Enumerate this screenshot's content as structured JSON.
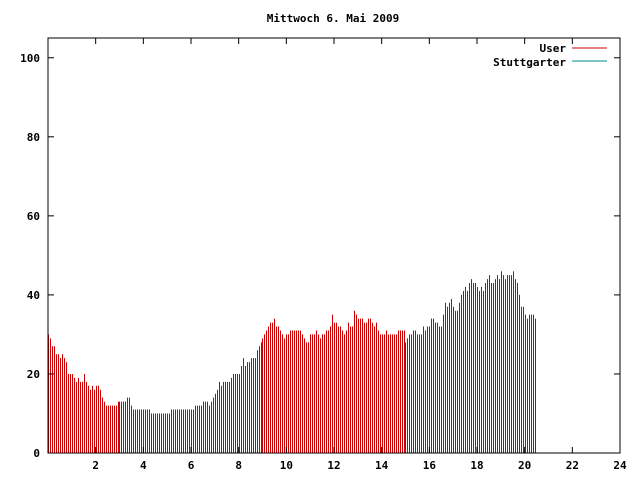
{
  "chart_data": {
    "type": "bar",
    "title": "Mittwoch 6. Mai 2009",
    "xlim": [
      0,
      24
    ],
    "ylim": [
      0,
      105
    ],
    "x_ticks": [
      2,
      4,
      6,
      8,
      10,
      12,
      14,
      16,
      18,
      20,
      22,
      24
    ],
    "y_ticks": [
      0,
      20,
      40,
      60,
      80,
      100
    ],
    "grid": false,
    "legend_placement": "top-right",
    "bar_step_hours": 0.0833333,
    "series": [
      {
        "name": "User",
        "color": "#cc0000",
        "start_hour": 0,
        "values": [
          30,
          29,
          27,
          27,
          25,
          25,
          24,
          25,
          24,
          23,
          20,
          20,
          20,
          19,
          18,
          19,
          18,
          18,
          20,
          18,
          17,
          16,
          17,
          16,
          17,
          17,
          16,
          14,
          13,
          12,
          12,
          12,
          12,
          12,
          12,
          13,
          13,
          13,
          13,
          13,
          14,
          14,
          12,
          11,
          11,
          11,
          11,
          11,
          11,
          11,
          11,
          11,
          10,
          10,
          10,
          10,
          10,
          10,
          10,
          10,
          10,
          10,
          11,
          11,
          11,
          11,
          11,
          11,
          11,
          11,
          11,
          11,
          11,
          11,
          12,
          12,
          12,
          12,
          13,
          13,
          13,
          12,
          13,
          14,
          15,
          16,
          18,
          17,
          18,
          18,
          18,
          18,
          19,
          20,
          20,
          20,
          20,
          22,
          24,
          22,
          23,
          23,
          24,
          24,
          24,
          26,
          27,
          28,
          29,
          30,
          31,
          32,
          33,
          33,
          34,
          32,
          32,
          31,
          30,
          29,
          30,
          30,
          31,
          31,
          31,
          31,
          31,
          31,
          30,
          29,
          28,
          28,
          30,
          30,
          30,
          31,
          30,
          29,
          30,
          30,
          31,
          31,
          32,
          35,
          33,
          33,
          32,
          32,
          31,
          30,
          31,
          33,
          32,
          32,
          36,
          35,
          34,
          34,
          34,
          33,
          33,
          34,
          34,
          33,
          32,
          33,
          31,
          30,
          30,
          30,
          31,
          30,
          30,
          30,
          30,
          30,
          31,
          31,
          31,
          31,
          28,
          29,
          30,
          30,
          31,
          31,
          30,
          30,
          30,
          32,
          31,
          32,
          32,
          34,
          34,
          33,
          33,
          32,
          32,
          35,
          38,
          37,
          38,
          39,
          37,
          36,
          36,
          38,
          40,
          41,
          42,
          41,
          43,
          44,
          43,
          43,
          42,
          41,
          42,
          41,
          43,
          44,
          45,
          43,
          43,
          44,
          45,
          44,
          46,
          45,
          44,
          45,
          45,
          45,
          46,
          44,
          43,
          40,
          37,
          37,
          35,
          34,
          35,
          35,
          35,
          34
        ]
      },
      {
        "name": "Stuttgarter",
        "color": "#008b8b",
        "values": []
      }
    ]
  }
}
